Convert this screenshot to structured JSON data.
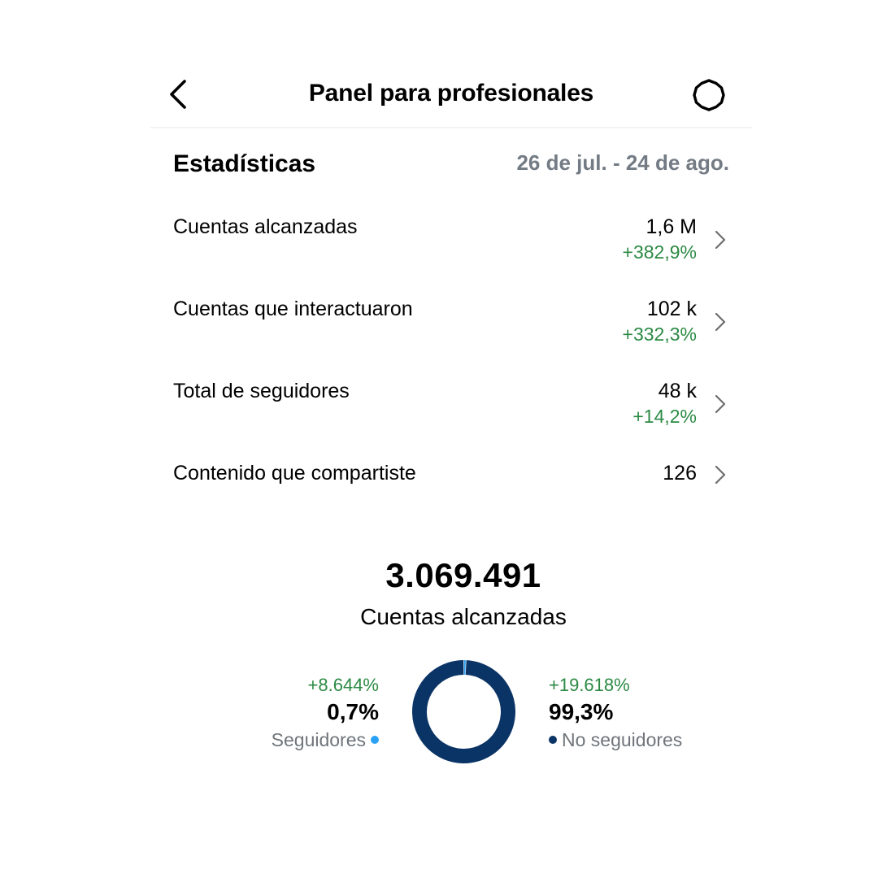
{
  "header": {
    "title": "Panel para profesionales",
    "back_icon": "chevron-left-icon",
    "settings_icon": "gear-icon"
  },
  "insights": {
    "title": "Estadísticas",
    "date_range": "26 de jul. - 24 de ago.",
    "rows": [
      {
        "label": "Cuentas alcanzadas",
        "value": "1,6 M",
        "delta": "+382,9%"
      },
      {
        "label": "Cuentas que interactuaron",
        "value": "102 k",
        "delta": "+332,3%"
      },
      {
        "label": "Total de seguidores",
        "value": "48 k",
        "delta": "+14,2%"
      },
      {
        "label": "Contenido que compartiste",
        "value": "126"
      }
    ]
  },
  "reach": {
    "total": "3.069.491",
    "label": "Cuentas alcanzadas"
  },
  "chart_data": {
    "type": "pie",
    "series": [
      {
        "name": "Seguidores",
        "value": 0.7,
        "display": "0,7%",
        "delta": "+8.644%",
        "color": "#2aa1f3"
      },
      {
        "name": "No seguidores",
        "value": 99.3,
        "display": "99,3%",
        "delta": "+19.618%",
        "color": "#0b3466"
      }
    ]
  },
  "colors": {
    "positive": "#2c8a44",
    "muted": "#737b84"
  }
}
